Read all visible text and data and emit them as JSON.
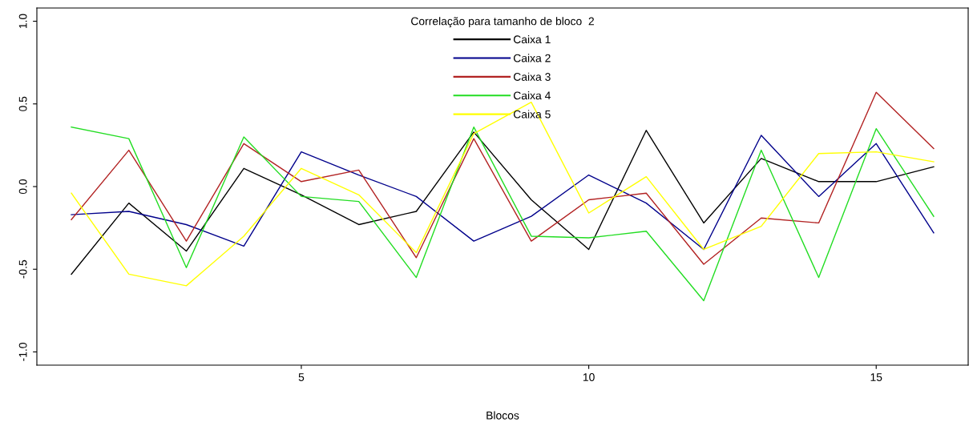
{
  "chart_data": {
    "type": "line",
    "legend_title": "Correlação para tamanho de bloco  2",
    "xlabel": "Blocos",
    "x": [
      1,
      2,
      3,
      4,
      5,
      6,
      7,
      8,
      9,
      10,
      11,
      12,
      13,
      14,
      15,
      16
    ],
    "series": [
      {
        "name": "Caixa 1",
        "color": "#000000",
        "values": [
          -0.53,
          -0.1,
          -0.39,
          0.11,
          -0.05,
          -0.23,
          -0.15,
          0.33,
          -0.08,
          -0.38,
          0.34,
          -0.22,
          0.17,
          0.03,
          0.03,
          0.12
        ]
      },
      {
        "name": "Caixa 2",
        "color": "#00008b",
        "values": [
          -0.17,
          -0.15,
          -0.23,
          -0.36,
          0.21,
          0.07,
          -0.06,
          -0.33,
          -0.18,
          0.07,
          -0.1,
          -0.38,
          0.31,
          -0.06,
          0.26,
          -0.28
        ]
      },
      {
        "name": "Caixa 3",
        "color": "#b22222",
        "values": [
          -0.2,
          0.22,
          -0.33,
          0.26,
          0.03,
          0.1,
          -0.43,
          0.29,
          -0.33,
          -0.08,
          -0.04,
          -0.47,
          -0.19,
          -0.22,
          0.57,
          0.23
        ]
      },
      {
        "name": "Caixa 4",
        "color": "#22dd22",
        "values": [
          0.36,
          0.29,
          -0.49,
          0.3,
          -0.06,
          -0.09,
          -0.55,
          0.36,
          -0.3,
          -0.31,
          -0.27,
          -0.69,
          0.22,
          -0.55,
          0.35,
          -0.18
        ]
      },
      {
        "name": "Caixa 5",
        "color": "#ffff00",
        "values": [
          -0.04,
          -0.53,
          -0.6,
          -0.3,
          0.11,
          -0.05,
          -0.4,
          0.32,
          0.51,
          -0.16,
          0.06,
          -0.38,
          -0.24,
          0.2,
          0.21,
          0.15
        ]
      }
    ],
    "xlim": [
      0.4,
      16.6
    ],
    "ylim": [
      -1.08,
      1.08
    ],
    "xticks": [
      5,
      10,
      15
    ],
    "yticks": [
      {
        "value": -1,
        "label": "-1.0"
      },
      {
        "value": -0.5,
        "label": "-0.5"
      },
      {
        "value": 0,
        "label": "0.0"
      },
      {
        "value": 0.5,
        "label": "0.5"
      },
      {
        "value": 1,
        "label": "1.0"
      }
    ],
    "grid": false,
    "legend": "top"
  }
}
